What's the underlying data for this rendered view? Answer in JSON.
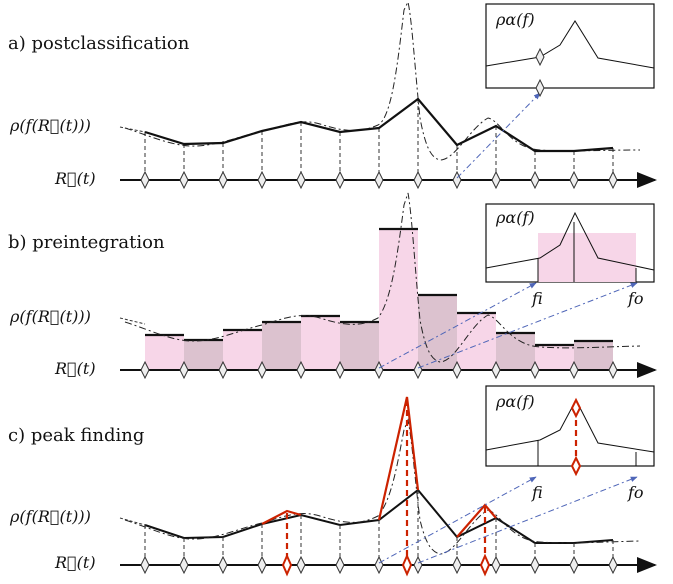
{
  "panels": [
    {
      "label": "a) postclassification"
    },
    {
      "label": "b) preintegration"
    },
    {
      "label": "c) peak finding"
    }
  ],
  "labels": {
    "rho_f_r": "ρ(f(R⃗(t)))",
    "r_t": "R⃗(t)",
    "rho_alpha": "ρα(f)",
    "f_i": "fi",
    "f_o": "fo"
  },
  "colors": {
    "pink": "#f7d6e8",
    "pink_dark": "#d7bfca",
    "red": "#cc2200",
    "blue_arrow": "#4f66b8",
    "black": "#111111"
  }
}
